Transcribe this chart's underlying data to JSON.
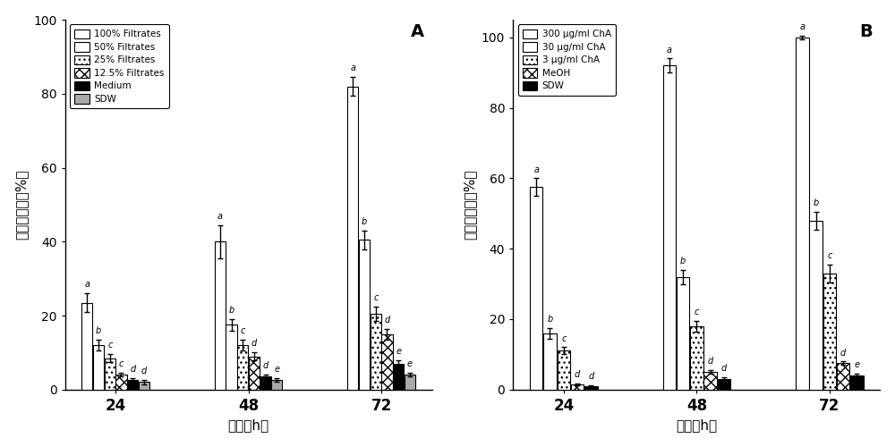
{
  "panel_A": {
    "title": "A",
    "groups": [
      "24",
      "48",
      "72"
    ],
    "series": [
      {
        "label": "100% Filtrates",
        "values": [
          23.5,
          40.0,
          82.0
        ],
        "errors": [
          2.5,
          4.5,
          2.5
        ],
        "fc": "white",
        "hatch": ""
      },
      {
        "label": "50% Filtrates",
        "values": [
          12.0,
          17.5,
          40.5
        ],
        "errors": [
          1.5,
          1.5,
          2.5
        ],
        "fc": "white",
        "hatch": "==="
      },
      {
        "label": "25% Filtrates",
        "values": [
          8.5,
          12.0,
          20.5
        ],
        "errors": [
          1.0,
          1.5,
          2.0
        ],
        "fc": "white",
        "hatch": "..."
      },
      {
        "label": "12.5% Filtrates",
        "values": [
          4.0,
          9.0,
          15.0
        ],
        "errors": [
          0.5,
          1.0,
          1.5
        ],
        "fc": "white",
        "hatch": "xxx"
      },
      {
        "label": "Medium",
        "values": [
          2.5,
          3.5,
          7.0
        ],
        "errors": [
          0.5,
          0.5,
          1.0
        ],
        "fc": "black",
        "hatch": ""
      },
      {
        "label": "SDW",
        "values": [
          2.0,
          2.5,
          4.0
        ],
        "errors": [
          0.5,
          0.5,
          0.5
        ],
        "fc": "#aaaaaa",
        "hatch": ""
      }
    ],
    "labels_per_bar": [
      [
        "a",
        "b",
        "c",
        "c",
        "d",
        "d"
      ],
      [
        "a",
        "b",
        "c",
        "d",
        "d",
        "e"
      ],
      [
        "a",
        "b",
        "c",
        "d",
        "e",
        "e"
      ]
    ],
    "ylabel": "校正死亡率（%）",
    "xlabel": "时间（h）",
    "ylim": [
      0,
      100
    ],
    "yticks": [
      0,
      20,
      40,
      60,
      80,
      100
    ]
  },
  "panel_B": {
    "title": "B",
    "groups": [
      "24",
      "48",
      "72"
    ],
    "series": [
      {
        "label": "300 μg/ml ChA",
        "values": [
          57.5,
          92.0,
          100.0
        ],
        "errors": [
          2.5,
          2.0,
          0.5
        ],
        "fc": "white",
        "hatch": ""
      },
      {
        "label": "30 μg/ml ChA",
        "values": [
          16.0,
          32.0,
          48.0
        ],
        "errors": [
          1.5,
          2.0,
          2.5
        ],
        "fc": "white",
        "hatch": "==="
      },
      {
        "label": "3 μg/ml ChA",
        "values": [
          11.0,
          18.0,
          33.0
        ],
        "errors": [
          1.0,
          1.5,
          2.5
        ],
        "fc": "white",
        "hatch": "..."
      },
      {
        "label": "MeOH",
        "values": [
          1.5,
          5.0,
          7.5
        ],
        "errors": [
          0.3,
          0.5,
          0.5
        ],
        "fc": "white",
        "hatch": "xxx"
      },
      {
        "label": "SDW",
        "values": [
          1.0,
          3.0,
          4.0
        ],
        "errors": [
          0.3,
          0.5,
          0.5
        ],
        "fc": "black",
        "hatch": ""
      }
    ],
    "labels_per_bar": [
      [
        "a",
        "b",
        "c",
        "d",
        "d"
      ],
      [
        "a",
        "b",
        "c",
        "d",
        "d"
      ],
      [
        "a",
        "b",
        "c",
        "d",
        "e"
      ]
    ],
    "ylabel": "校正死亡率（%）",
    "xlabel": "时间（h）",
    "ylim": [
      0,
      105
    ],
    "yticks": [
      0,
      20,
      40,
      60,
      80,
      100
    ]
  }
}
